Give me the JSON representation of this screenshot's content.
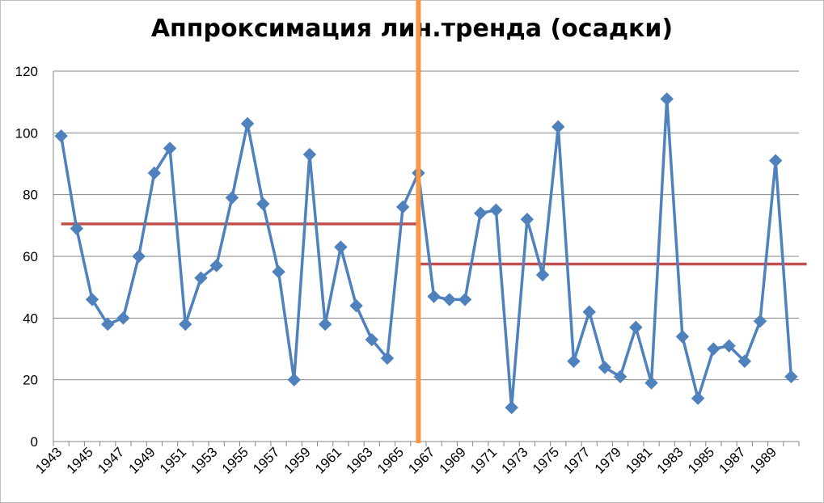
{
  "chart_data": {
    "type": "line",
    "title": "Аппроксимация лин.тренда (осадки)",
    "xlabel": "",
    "ylabel": "",
    "ylim": [
      0,
      120
    ],
    "yticks": [
      0,
      20,
      40,
      60,
      80,
      100,
      120
    ],
    "grid": "horizontal",
    "legend": "none",
    "x": [
      1943,
      1944,
      1945,
      1946,
      1947,
      1948,
      1949,
      1950,
      1951,
      1952,
      1953,
      1954,
      1955,
      1956,
      1957,
      1958,
      1959,
      1960,
      1961,
      1962,
      1963,
      1964,
      1965,
      1966,
      1967,
      1968,
      1969,
      1970,
      1971,
      1972,
      1973,
      1974,
      1975,
      1976,
      1977,
      1978,
      1979,
      1980,
      1981,
      1982,
      1983,
      1984,
      1985,
      1986,
      1987,
      1988,
      1989,
      1990
    ],
    "xtick_labels": [
      "1943",
      "1945",
      "1947",
      "1949",
      "1951",
      "1953",
      "1955",
      "1957",
      "1959",
      "1961",
      "1963",
      "1965",
      "1967",
      "1969",
      "1971",
      "1973",
      "1975",
      "1977",
      "1979",
      "1981",
      "1983",
      "1985",
      "1987",
      "1989"
    ],
    "series": [
      {
        "values": [
          99,
          69,
          46,
          38,
          40,
          60,
          87,
          95,
          38,
          53,
          57,
          79,
          103,
          77,
          55,
          20,
          93,
          38,
          63,
          44,
          33,
          27,
          76,
          87,
          47,
          46,
          46,
          74,
          75,
          11,
          72,
          54,
          102,
          26,
          42,
          24,
          21,
          37,
          19,
          111,
          34,
          14,
          30,
          31,
          26,
          39,
          91,
          21
        ],
        "color": "#4f81bd",
        "marker": "diamond"
      }
    ],
    "trend_lines": [
      {
        "x_from": 1943,
        "x_to": 1966,
        "y": 70.5,
        "color": "#c0504d"
      },
      {
        "x_from": 1966,
        "x_to": 1991,
        "y": 57.5,
        "color": "#c0504d"
      }
    ],
    "divider": {
      "x": 1966,
      "color": "#f79646"
    }
  }
}
